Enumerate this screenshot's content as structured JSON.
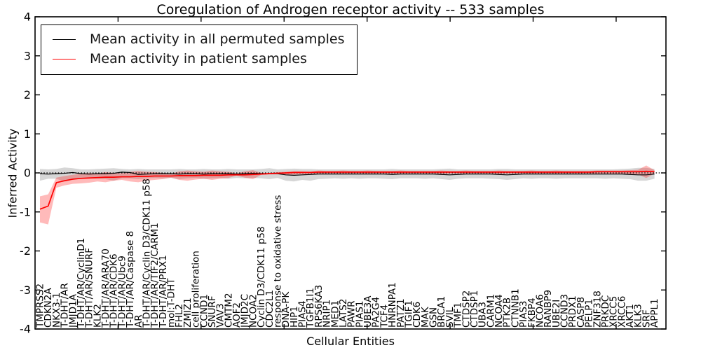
{
  "title": "Coregulation of Androgen receptor activity -- 533 samples",
  "legend": {
    "items": [
      {
        "label": "Mean activity in all permuted samples",
        "color": "#000000"
      },
      {
        "label": "Mean activity in patient samples",
        "color": "#ff0000"
      }
    ],
    "position": "upper left"
  },
  "chart_data": {
    "type": "line",
    "title": "Coregulation of Androgen receptor activity -- 533 samples",
    "xlabel": "Cellular Entities",
    "ylabel": "Inferred Activity",
    "ylim": [
      -4,
      4
    ],
    "yticks": [
      4,
      3,
      2,
      1,
      0,
      -1,
      -2,
      -3,
      -4
    ],
    "grid": false,
    "zero_reference_line": true,
    "legend_position": "upper left",
    "colors": {
      "permuted_line": "#000000",
      "permuted_band": "rgba(0,0,0,0.16)",
      "patient_line": "#ff0000",
      "patient_band": "rgba(255,0,0,0.27)"
    },
    "categories": [
      "TMPRSS2",
      "CDKN2A",
      "NKX3-1",
      "T-DHT/AR",
      "JMJD1A",
      "T-DHT/AR/CyclinD1",
      "T-DHT/AR/SNURF",
      "KLK2",
      "T-DHT/AR/ARA70",
      "T-DHT/AR/CDK6",
      "T-DHT/AR/Ubc9",
      "T-DHT/AR/Caspase 8",
      "AR",
      "T-DHT/AR/Cyclin D3/CDK11 p58",
      "T-DHT/AR/TIF2/CARM1",
      "T-DHT/AR/PRX1",
      "mol:T-DHT",
      "FHL2",
      "ZMIZ1",
      "cell proliferation",
      "CCND1",
      "SNURF",
      "VAV3",
      "CMTM2",
      "AOF2",
      "JMJD2C",
      "NCOA2",
      "Cyclin D3/CDK11 p58",
      "CDC2L1",
      "response to oxidative stress",
      "DNA-PK",
      "HIP1",
      "PIAS4",
      "TGFB1I1",
      "RPS6KA3",
      "NRIP1",
      "MED1",
      "LATS2",
      "PAWR",
      "PIAS1",
      "UBE3A",
      "PA2G4",
      "TCF4",
      "HNRNPA1",
      "PATZ1",
      "TGIF1",
      "CDK6",
      "MAK",
      "GSN",
      "BRCA1",
      "SVIL",
      "TMF1",
      "CTDSP2",
      "CTDSP1",
      "UBA3",
      "CARM1",
      "NCOA4",
      "PTK2B",
      "CTNNB1",
      "PIAS3",
      "FKBP4",
      "NCOA6",
      "RANBP9",
      "UBE2I",
      "CCND3",
      "PRDX1",
      "CASP8",
      "PELP1",
      "ZNF318",
      "PRKDC",
      "XRCC5",
      "XRCC6",
      "AKT1",
      "KLK3",
      "SRF",
      "APPL1"
    ],
    "series": [
      {
        "name": "Mean activity in all permuted samples",
        "color": "#000000",
        "values": [
          -0.02,
          -0.03,
          -0.02,
          -0.01,
          0.01,
          -0.02,
          -0.03,
          -0.02,
          -0.02,
          -0.01,
          0.02,
          0.01,
          -0.04,
          -0.03,
          -0.02,
          -0.02,
          -0.02,
          -0.03,
          -0.02,
          -0.02,
          -0.03,
          -0.02,
          -0.02,
          -0.02,
          -0.03,
          -0.02,
          -0.01,
          -0.02,
          -0.02,
          -0.02,
          -0.05,
          -0.06,
          -0.05,
          -0.04,
          -0.03,
          -0.03,
          -0.03,
          -0.03,
          -0.03,
          -0.03,
          -0.03,
          -0.03,
          -0.03,
          -0.04,
          -0.03,
          -0.03,
          -0.03,
          -0.03,
          -0.03,
          -0.04,
          -0.05,
          -0.04,
          -0.03,
          -0.03,
          -0.03,
          -0.03,
          -0.04,
          -0.05,
          -0.04,
          -0.03,
          -0.03,
          -0.03,
          -0.03,
          -0.03,
          -0.03,
          -0.03,
          -0.03,
          -0.03,
          -0.03,
          -0.03,
          -0.03,
          -0.03,
          -0.04,
          -0.05,
          -0.05,
          -0.03
        ],
        "band_lo": [
          -0.2,
          -0.15,
          -0.15,
          -0.22,
          -0.18,
          -0.15,
          -0.14,
          -0.15,
          -0.16,
          -0.2,
          -0.14,
          -0.14,
          -0.16,
          -0.14,
          -0.13,
          -0.14,
          -0.13,
          -0.16,
          -0.14,
          -0.13,
          -0.15,
          -0.14,
          -0.13,
          -0.15,
          -0.13,
          -0.14,
          -0.13,
          -0.14,
          -0.16,
          -0.13,
          -0.2,
          -0.22,
          -0.18,
          -0.2,
          -0.16,
          -0.15,
          -0.14,
          -0.15,
          -0.14,
          -0.15,
          -0.14,
          -0.14,
          -0.15,
          -0.16,
          -0.14,
          -0.14,
          -0.14,
          -0.15,
          -0.14,
          -0.16,
          -0.18,
          -0.15,
          -0.14,
          -0.14,
          -0.14,
          -0.15,
          -0.16,
          -0.18,
          -0.16,
          -0.14,
          -0.15,
          -0.14,
          -0.14,
          -0.15,
          -0.14,
          -0.14,
          -0.14,
          -0.14,
          -0.14,
          -0.15,
          -0.14,
          -0.15,
          -0.16,
          -0.2,
          -0.2,
          -0.15
        ],
        "band_hi": [
          0.1,
          0.09,
          0.1,
          0.14,
          0.12,
          0.09,
          0.09,
          0.1,
          0.11,
          0.12,
          0.1,
          0.09,
          0.1,
          0.09,
          0.09,
          0.09,
          0.09,
          0.1,
          0.09,
          0.09,
          0.1,
          0.09,
          0.09,
          0.1,
          0.09,
          0.09,
          0.09,
          0.1,
          0.12,
          0.09,
          0.1,
          0.11,
          0.1,
          0.1,
          0.09,
          0.09,
          0.09,
          0.09,
          0.09,
          0.09,
          0.09,
          0.09,
          0.09,
          0.1,
          0.09,
          0.09,
          0.09,
          0.09,
          0.09,
          0.1,
          0.11,
          0.09,
          0.09,
          0.09,
          0.09,
          0.09,
          0.1,
          0.1,
          0.09,
          0.09,
          0.09,
          0.09,
          0.09,
          0.09,
          0.09,
          0.09,
          0.09,
          0.09,
          0.09,
          0.09,
          0.09,
          0.1,
          0.11,
          0.13,
          0.13,
          0.1
        ]
      },
      {
        "name": "Mean activity in patient samples",
        "color": "#ff0000",
        "values": [
          -0.93,
          -0.85,
          -0.25,
          -0.2,
          -0.16,
          -0.14,
          -0.13,
          -0.12,
          -0.11,
          -0.11,
          -0.1,
          -0.1,
          -0.09,
          -0.09,
          -0.08,
          -0.08,
          -0.08,
          -0.07,
          -0.07,
          -0.07,
          -0.06,
          -0.06,
          -0.06,
          -0.05,
          -0.05,
          -0.05,
          -0.04,
          -0.03,
          -0.02,
          -0.01,
          0.0,
          0.01,
          0.01,
          0.01,
          0.02,
          0.02,
          0.02,
          0.02,
          0.02,
          0.02,
          0.02,
          0.02,
          0.02,
          0.02,
          0.02,
          0.02,
          0.02,
          0.02,
          0.02,
          0.02,
          0.02,
          0.02,
          0.02,
          0.02,
          0.02,
          0.02,
          0.02,
          0.02,
          0.02,
          0.02,
          0.02,
          0.02,
          0.02,
          0.02,
          0.02,
          0.02,
          0.02,
          0.02,
          0.03,
          0.03,
          0.03,
          0.03,
          0.03,
          0.03,
          0.04,
          0.03
        ],
        "band_lo": [
          -1.27,
          -1.32,
          -0.38,
          -0.32,
          -0.28,
          -0.27,
          -0.25,
          -0.22,
          -0.24,
          -0.2,
          -0.18,
          -0.22,
          -0.24,
          -0.2,
          -0.18,
          -0.16,
          -0.12,
          -0.18,
          -0.2,
          -0.17,
          -0.15,
          -0.18,
          -0.15,
          -0.13,
          -0.07,
          -0.12,
          -0.16,
          -0.05,
          -0.03,
          -0.03,
          -0.04,
          -0.04,
          -0.03,
          -0.02,
          -0.03,
          -0.02,
          -0.02,
          -0.03,
          -0.02,
          -0.02,
          -0.03,
          -0.02,
          -0.02,
          -0.02,
          -0.03,
          -0.02,
          -0.02,
          -0.02,
          -0.02,
          -0.03,
          -0.02,
          -0.02,
          -0.03,
          -0.02,
          -0.02,
          -0.02,
          -0.03,
          -0.02,
          -0.02,
          -0.02,
          -0.03,
          -0.02,
          -0.02,
          -0.03,
          -0.02,
          -0.02,
          -0.02,
          -0.02,
          -0.02,
          -0.02,
          -0.02,
          -0.02,
          -0.03,
          -0.04,
          -0.13,
          -0.02
        ],
        "band_hi": [
          -0.6,
          -0.55,
          -0.12,
          -0.08,
          -0.05,
          -0.02,
          0.0,
          -0.02,
          0.02,
          0.0,
          -0.01,
          0.03,
          0.05,
          0.03,
          0.02,
          0.0,
          -0.02,
          0.04,
          0.06,
          0.04,
          0.03,
          0.06,
          0.04,
          0.03,
          -0.01,
          0.04,
          0.07,
          0.0,
          0.0,
          0.02,
          0.03,
          0.05,
          0.05,
          0.04,
          0.06,
          0.05,
          0.05,
          0.06,
          0.05,
          0.05,
          0.06,
          0.05,
          0.05,
          0.05,
          0.06,
          0.05,
          0.05,
          0.05,
          0.05,
          0.06,
          0.05,
          0.05,
          0.06,
          0.05,
          0.05,
          0.05,
          0.06,
          0.05,
          0.05,
          0.05,
          0.06,
          0.05,
          0.05,
          0.06,
          0.05,
          0.05,
          0.05,
          0.05,
          0.06,
          0.06,
          0.06,
          0.06,
          0.07,
          0.08,
          0.19,
          0.07
        ]
      }
    ]
  }
}
